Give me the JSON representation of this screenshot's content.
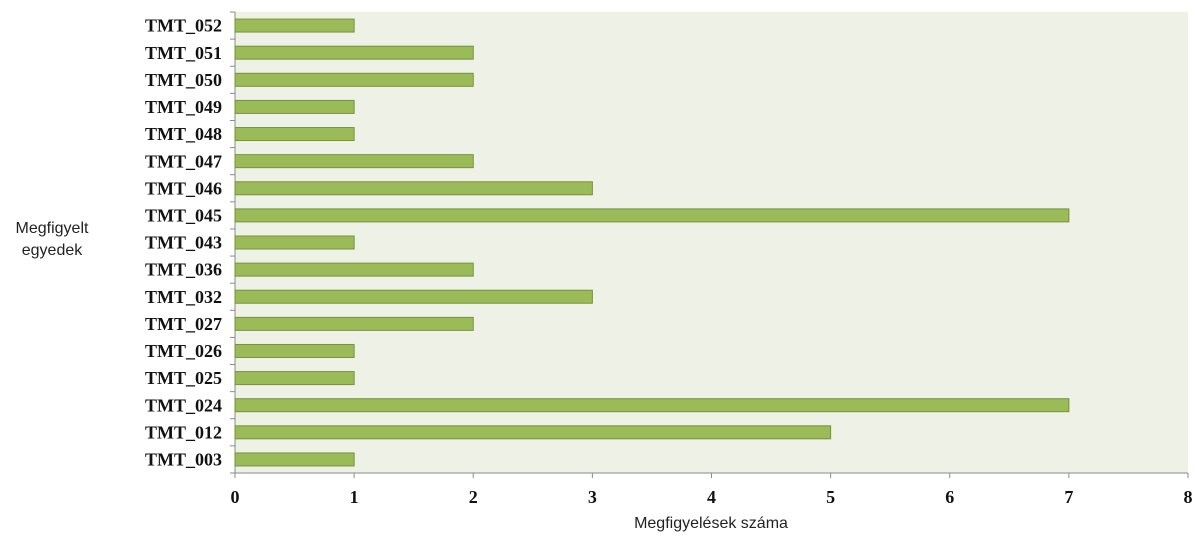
{
  "chart_data": {
    "type": "bar",
    "orientation": "horizontal",
    "categories": [
      "TMT_052",
      "TMT_051",
      "TMT_050",
      "TMT_049",
      "TMT_048",
      "TMT_047",
      "TMT_046",
      "TMT_045",
      "TMT_043",
      "TMT_036",
      "TMT_032",
      "TMT_027",
      "TMT_026",
      "TMT_025",
      "TMT_024",
      "TMT_012",
      "TMT_003"
    ],
    "values": [
      1,
      2,
      2,
      1,
      1,
      2,
      3,
      7,
      1,
      2,
      3,
      2,
      1,
      1,
      7,
      5,
      1
    ],
    "color": "#9bbb59",
    "x_label": "Megfigyelések száma",
    "y_label": "Megfigyelt egyedek",
    "xlim": [
      0,
      8
    ],
    "xticks": [
      0,
      1,
      2,
      3,
      4,
      5,
      6,
      7,
      8
    ],
    "grid": false
  }
}
